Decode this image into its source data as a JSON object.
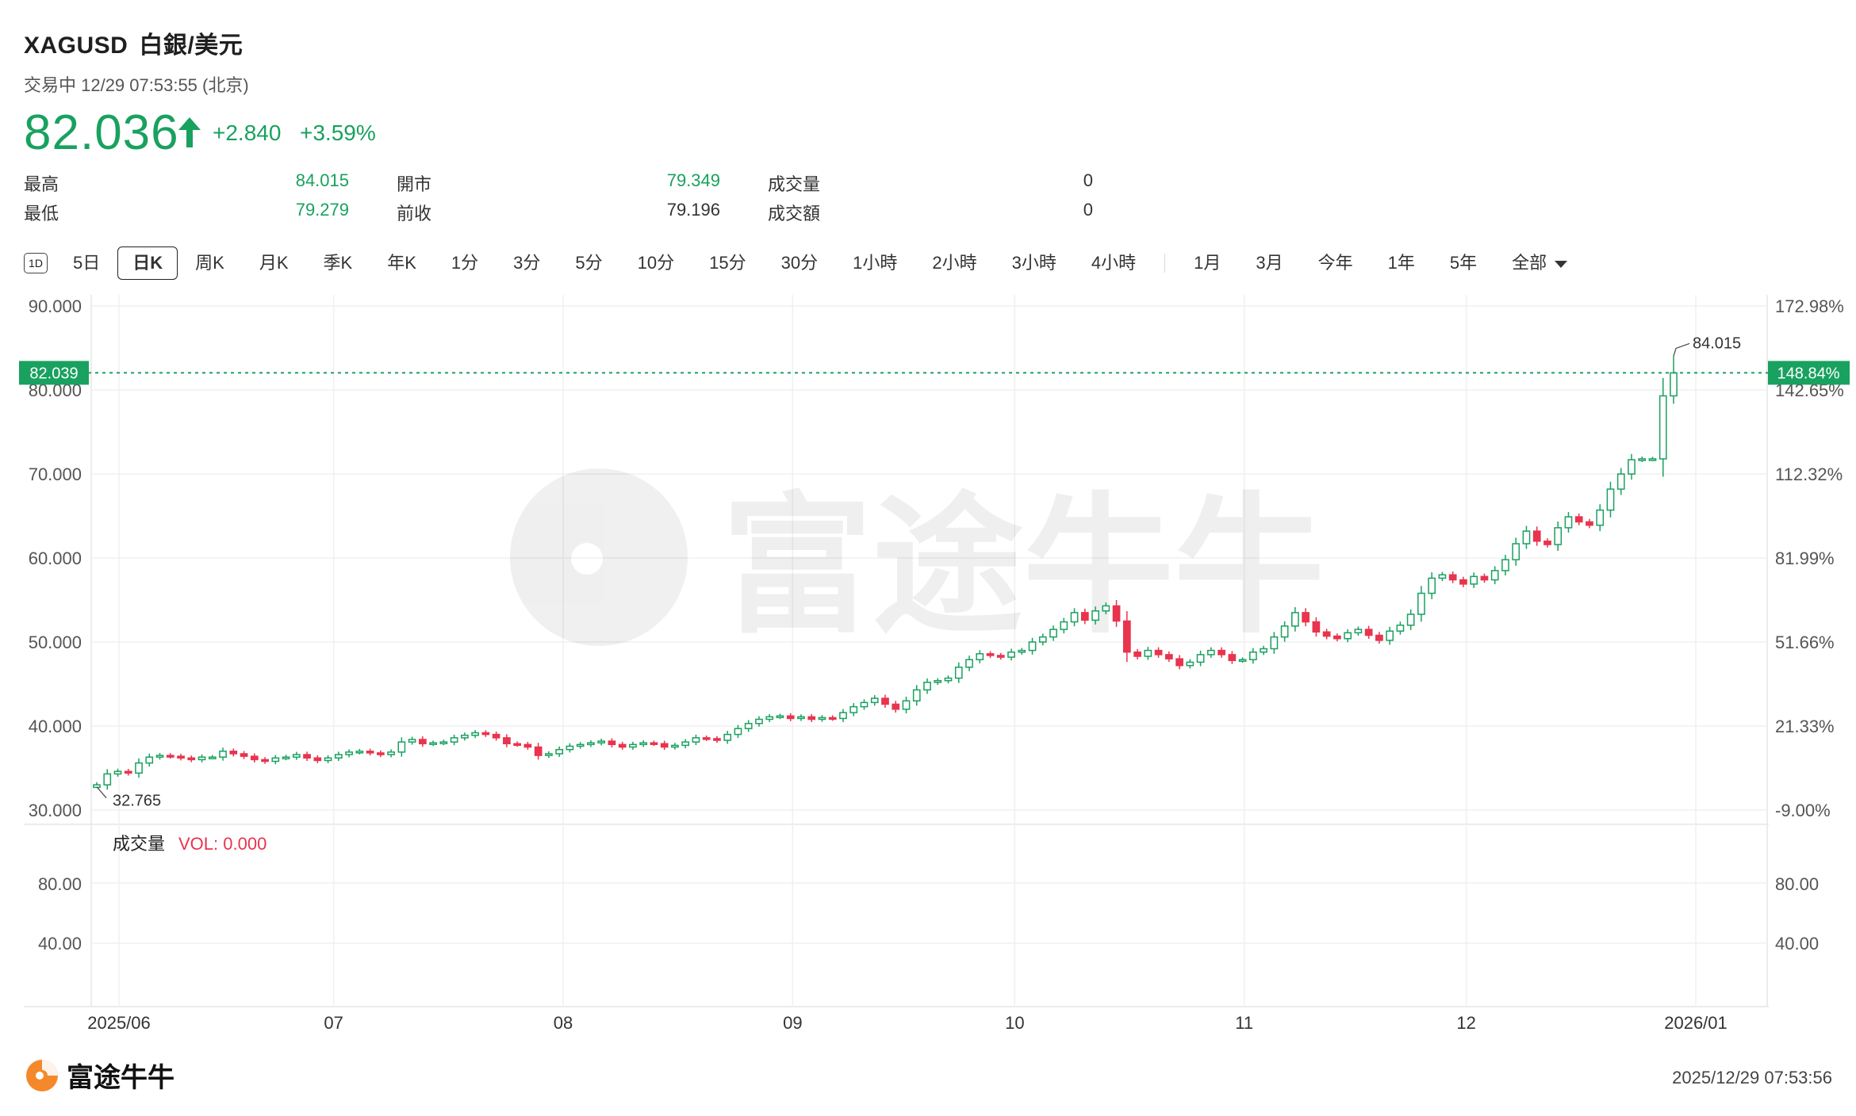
{
  "header": {
    "symbol": "XAGUSD",
    "name": "白銀/美元",
    "status": "交易中 12/29 07:53:55 (北京)",
    "price": "82.036",
    "change": "+2.840",
    "change_pct": "+3.59%",
    "up_color": "#19a15f",
    "down_color": "#e8344e"
  },
  "stats": [
    {
      "label": "最高",
      "value": "84.015",
      "tone": "up"
    },
    {
      "label": "開市",
      "value": "79.349",
      "tone": "up"
    },
    {
      "label": "成交量",
      "value": "0",
      "tone": "neutral"
    },
    {
      "label": "最低",
      "value": "79.279",
      "tone": "up"
    },
    {
      "label": "前收",
      "value": "79.196",
      "tone": "neutral"
    },
    {
      "label": "成交額",
      "value": "0",
      "tone": "neutral"
    }
  ],
  "toolbar": {
    "icon_label": "1D",
    "periods": [
      "5日",
      "日K",
      "周K",
      "月K",
      "季K",
      "年K",
      "1分",
      "3分",
      "5分",
      "10分",
      "15分",
      "30分",
      "1小時",
      "2小時",
      "3小時",
      "4小時"
    ],
    "active": "日K",
    "ranges": [
      "1月",
      "3月",
      "今年",
      "1年",
      "5年"
    ],
    "more": "全部"
  },
  "chart": {
    "y_left_ticks": [
      "90.000",
      "80.000",
      "70.000",
      "60.000",
      "50.000",
      "40.000",
      "30.000"
    ],
    "y_right_ticks": [
      "172.98%",
      "142.65%",
      "112.32%",
      "81.99%",
      "51.66%",
      "21.33%",
      "-9.00%"
    ],
    "current_price_tag": "82.039",
    "current_pct_tag": "148.84%",
    "high_label": "84.015",
    "low_label": "32.765",
    "volume_label": "成交量",
    "volume_value": "VOL: 0.000",
    "vol_left_ticks": [
      "80.00",
      "40.00"
    ],
    "vol_right_ticks": [
      "80.00",
      "40.00"
    ],
    "x_labels": [
      "2025/06",
      "07",
      "08",
      "09",
      "10",
      "11",
      "12",
      "2026/01"
    ],
    "watermark": "富途牛牛"
  },
  "chart_data": {
    "type": "candlestick",
    "title": "",
    "ylim": [
      30,
      90
    ],
    "date_range": [
      "2025-05-30",
      "2025-12-29"
    ],
    "closes": [
      33.0,
      34.3,
      34.6,
      34.4,
      35.6,
      36.3,
      36.5,
      36.4,
      36.2,
      36.0,
      36.3,
      36.3,
      37.0,
      36.7,
      36.4,
      36.0,
      35.8,
      36.2,
      36.3,
      36.6,
      36.2,
      35.9,
      36.2,
      36.6,
      36.9,
      37.0,
      36.8,
      36.6,
      36.9,
      38.1,
      38.4,
      37.9,
      38.0,
      38.1,
      38.6,
      38.9,
      39.2,
      39.0,
      38.6,
      37.9,
      37.8,
      37.5,
      36.5,
      36.7,
      37.2,
      37.6,
      37.8,
      38.0,
      38.2,
      37.8,
      37.5,
      37.8,
      38.0,
      37.9,
      37.5,
      37.7,
      38.1,
      38.6,
      38.5,
      38.3,
      39.0,
      39.7,
      40.3,
      40.8,
      41.1,
      41.2,
      40.9,
      41.1,
      40.8,
      41.0,
      40.9,
      41.6,
      42.3,
      42.8,
      43.3,
      42.6,
      42.0,
      43.0,
      44.3,
      45.2,
      45.4,
      45.7,
      47.0,
      47.9,
      48.6,
      48.4,
      48.2,
      48.8,
      49.0,
      50.0,
      50.6,
      51.5,
      52.4,
      53.5,
      52.6,
      53.7,
      54.3,
      52.5,
      48.8,
      48.3,
      49.0,
      48.5,
      48.0,
      47.2,
      47.6,
      48.5,
      49.0,
      48.5,
      47.8,
      47.9,
      48.8,
      49.2,
      50.6,
      51.9,
      53.5,
      52.4,
      51.2,
      50.7,
      50.4,
      51.1,
      51.5,
      50.8,
      50.2,
      51.3,
      52.0,
      53.3,
      55.8,
      57.6,
      58.0,
      57.4,
      56.9,
      57.8,
      57.4,
      58.5,
      59.8,
      61.7,
      63.2,
      62.0,
      61.6,
      63.6,
      64.9,
      64.3,
      63.9,
      65.7,
      68.2,
      70.0,
      71.7,
      71.8,
      71.8,
      79.3,
      82.036
    ],
    "high": 84.015,
    "low": 32.765,
    "last": 82.039,
    "volume": 0
  }
}
